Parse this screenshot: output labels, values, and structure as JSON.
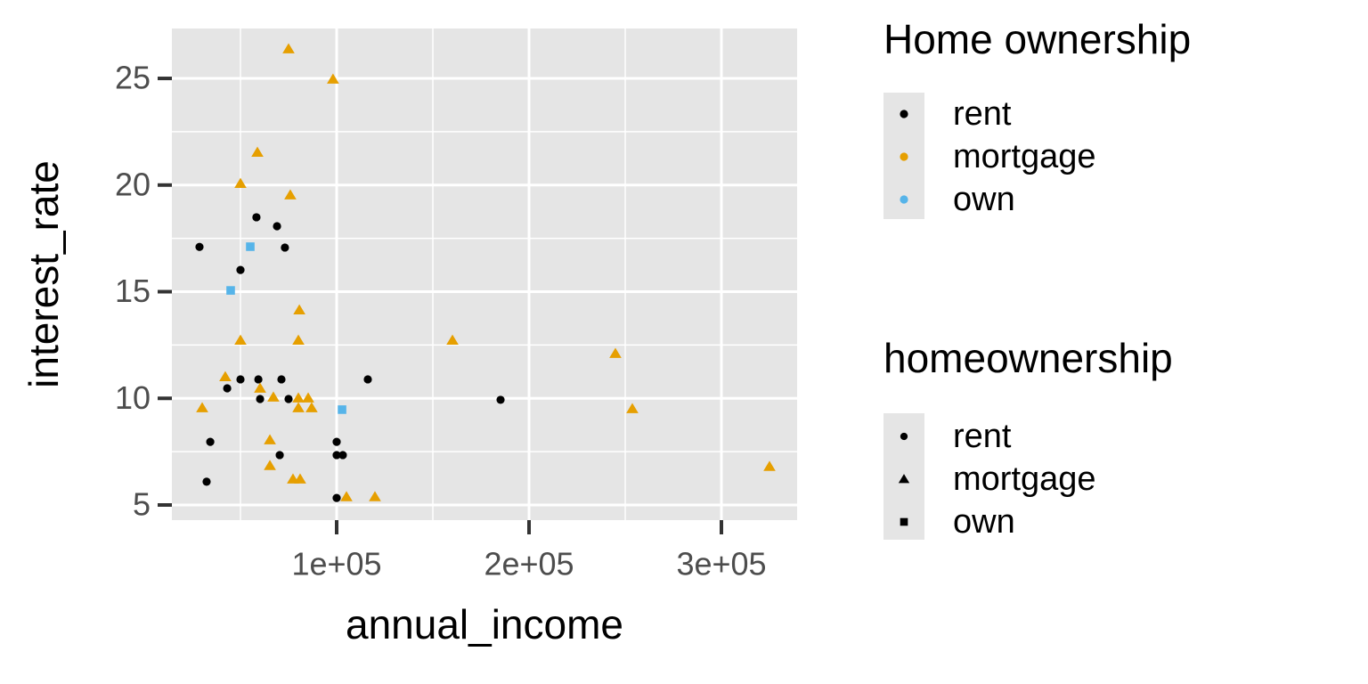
{
  "chart_data": {
    "type": "scatter",
    "x_label": "annual_income",
    "y_label": "interest_rate",
    "xlim": [
      14352,
      339352
    ],
    "ylim": [
      4.29,
      27.34
    ],
    "xticks": [
      {
        "value": 100000,
        "label": "1e+05"
      },
      {
        "value": 200000,
        "label": "2e+05"
      },
      {
        "value": 300000,
        "label": "3e+05"
      }
    ],
    "yticks": [
      5,
      10,
      15,
      20,
      25
    ],
    "x_minor_grid": [
      50000,
      150000,
      250000
    ],
    "y_minor_grid": [
      7.5,
      12.5,
      17.5,
      22.5
    ],
    "grid": true,
    "color_legend_title": "Home ownership",
    "shape_legend_title": "homeownership",
    "series": [
      {
        "name": "rent",
        "color": "#000000",
        "shape": "circle",
        "x": [
          28700,
          34300,
          32400,
          43100,
          50000,
          50000,
          58300,
          59300,
          60200,
          69000,
          73100,
          71300,
          70400,
          75000,
          100000,
          100000,
          103200,
          100000,
          116200,
          185200
        ],
        "values": [
          17.1,
          7.96,
          6.09,
          10.47,
          10.89,
          16.02,
          18.49,
          10.89,
          9.97,
          18.07,
          17.07,
          10.89,
          7.34,
          9.97,
          7.96,
          7.34,
          7.34,
          5.33,
          10.89,
          9.93
        ]
      },
      {
        "name": "mortgage",
        "color": "#e69f00",
        "shape": "triangle",
        "x": [
          75000,
          98100,
          58800,
          50000,
          75900,
          80600,
          50000,
          80100,
          42100,
          30100,
          60200,
          67100,
          80100,
          85200,
          80100,
          87000,
          65300,
          65300,
          77300,
          81000,
          105100,
          119900,
          160200,
          244900,
          253700,
          325000
        ],
        "values": [
          26.38,
          24.96,
          21.53,
          20.07,
          19.53,
          14.14,
          12.72,
          12.72,
          11.01,
          9.55,
          10.47,
          10.05,
          10.01,
          10.01,
          9.55,
          9.55,
          8.05,
          6.84,
          6.21,
          6.21,
          5.38,
          5.38,
          12.72,
          12.1,
          9.51,
          6.8
        ]
      },
      {
        "name": "own",
        "color": "#56b4e9",
        "shape": "square",
        "x": [
          55100,
          44900,
          102800
        ],
        "values": [
          17.11,
          15.06,
          9.47
        ]
      }
    ]
  }
}
